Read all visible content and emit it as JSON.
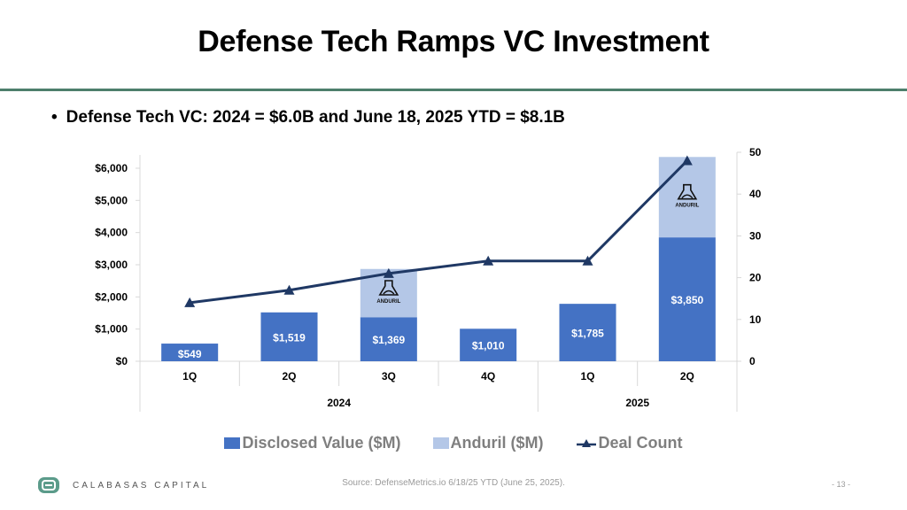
{
  "slide": {
    "title": "Defense Tech Ramps VC Investment",
    "bullet": "Defense Tech VC: 2024 = $6.0B and June 18, 2025 YTD = $8.1B",
    "bullet_marker": "•",
    "source": "Source: DefenseMetrics.io 6/18/25 YTD (June 25, 2025).",
    "page_number": "- 13 -",
    "company": "CALABASAS CAPITAL",
    "logo_icon": "calabasas-logo-icon",
    "colors": {
      "rule": "#4d7f6c",
      "disclosed": "#4472c4",
      "anduril": "#b4c7e7",
      "deal_line": "#1f3864"
    }
  },
  "chart_data": {
    "type": "bar",
    "stacked": true,
    "title": "",
    "categories": [
      "1Q",
      "2Q",
      "3Q",
      "4Q",
      "1Q",
      "2Q"
    ],
    "category_groups": [
      {
        "label": "2024",
        "span": 4
      },
      {
        "label": "2025",
        "span": 2
      }
    ],
    "series": [
      {
        "name": "Disclosed Value ($M)",
        "axis": "left",
        "type": "bar",
        "values": [
          549,
          1519,
          1369,
          1010,
          1785,
          3850
        ],
        "labels": [
          "$549",
          "$1,519",
          "$1,369",
          "$1,010",
          "$1,785",
          "$3,850"
        ]
      },
      {
        "name": "Anduril ($M)",
        "axis": "left",
        "type": "bar",
        "values": [
          0,
          0,
          1500,
          0,
          0,
          2500
        ],
        "logo_text": "ANDURIL"
      },
      {
        "name": "Deal Count",
        "axis": "right",
        "type": "line",
        "marker": "triangle",
        "values": [
          14,
          17,
          21,
          24,
          24,
          48
        ]
      }
    ],
    "y_left": {
      "ylim": [
        0,
        6000
      ],
      "ticks": [
        0,
        1000,
        2000,
        3000,
        4000,
        5000,
        6000
      ],
      "tick_labels": [
        "$0",
        "$1,000",
        "$2,000",
        "$3,000",
        "$4,000",
        "$5,000",
        "$6,000"
      ]
    },
    "y_right": {
      "ylim": [
        0,
        50
      ],
      "ticks": [
        0,
        10,
        20,
        30,
        40,
        50
      ],
      "tick_labels": [
        "0",
        "10",
        "20",
        "30",
        "40",
        "50"
      ]
    },
    "grid": false,
    "legend": {
      "position": "bottom",
      "entries": [
        "Disclosed Value ($M)",
        "Anduril ($M)",
        "Deal Count"
      ]
    }
  }
}
